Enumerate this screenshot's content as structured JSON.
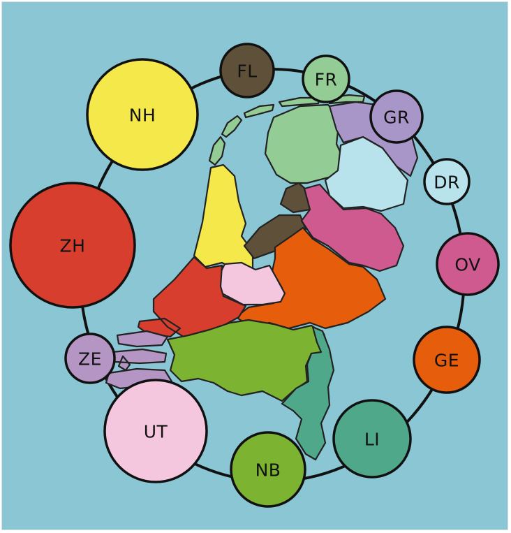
{
  "colors": {
    "background": "#8ac6d4",
    "outline": "#111111"
  },
  "provinces": [
    {
      "id": "nh",
      "label": "NH",
      "color": "#f5e84a"
    },
    {
      "id": "fl",
      "label": "FL",
      "color": "#5e5039"
    },
    {
      "id": "fr",
      "label": "FR",
      "color": "#94cc95"
    },
    {
      "id": "gr",
      "label": "GR",
      "color": "#a996c8"
    },
    {
      "id": "dr",
      "label": "DR",
      "color": "#b8e2ec"
    },
    {
      "id": "ov",
      "label": "OV",
      "color": "#cf5a8f"
    },
    {
      "id": "ge",
      "label": "GE",
      "color": "#e65d0c"
    },
    {
      "id": "li",
      "label": "LI",
      "color": "#4ea889"
    },
    {
      "id": "nb",
      "label": "NB",
      "color": "#7cb331"
    },
    {
      "id": "ut",
      "label": "UT",
      "color": "#f5c7df"
    },
    {
      "id": "ze",
      "label": "ZE",
      "color": "#b595c4"
    },
    {
      "id": "zh",
      "label": "ZH",
      "color": "#d83e2e"
    }
  ]
}
